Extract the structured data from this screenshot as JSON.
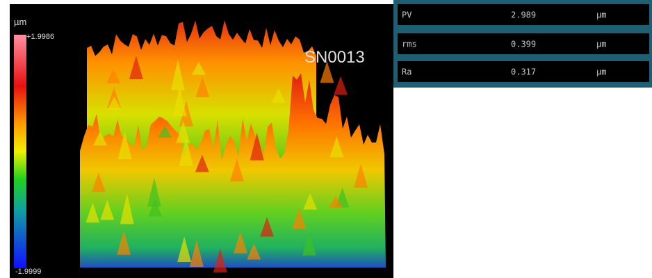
{
  "scale": {
    "unit": "µm",
    "max_label": "+1.9986",
    "min_label": "-1.9999"
  },
  "sample_id": "SN0013",
  "table": {
    "rows": [
      [
        "PV",
        "2.989",
        "µm"
      ],
      [
        "rms",
        "0.399",
        "µm"
      ],
      [
        "Ra",
        "0.317",
        "µm"
      ]
    ]
  }
}
